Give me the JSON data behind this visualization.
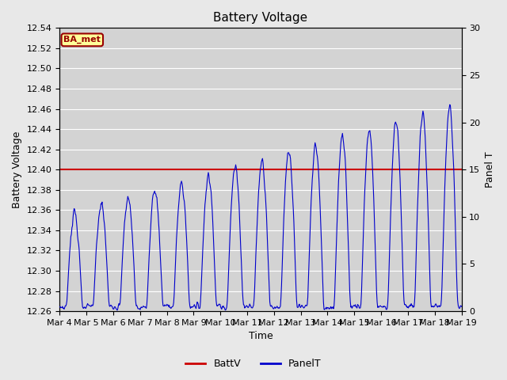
{
  "title": "Battery Voltage",
  "xlabel": "Time",
  "ylabel_left": "Battery Voltage",
  "ylabel_right": "Panel T",
  "ylim_left": [
    12.26,
    12.54
  ],
  "ylim_right": [
    0,
    30
  ],
  "background_color": "#e8e8e8",
  "plot_bg_color": "#d3d3d3",
  "grid_color": "#ffffff",
  "batt_v": 12.4,
  "batt_color": "#cc0000",
  "panel_color": "#0000cc",
  "xtick_labels": [
    "Mar 4",
    "Mar 5",
    "Mar 6",
    "Mar 7",
    "Mar 8",
    "Mar 9",
    "Mar 10",
    "Mar 11",
    "Mar 12",
    "Mar 13",
    "Mar 14",
    "Mar 15",
    "Mar 16",
    "Mar 17",
    "Mar 18",
    "Mar 19"
  ],
  "legend_label_batt": "BattV",
  "legend_label_panel": "PanelT",
  "watermark_text": "BA_met",
  "watermark_bg": "#ffff99",
  "watermark_border": "#990000",
  "title_fontsize": 11,
  "axis_fontsize": 9,
  "tick_fontsize": 8
}
